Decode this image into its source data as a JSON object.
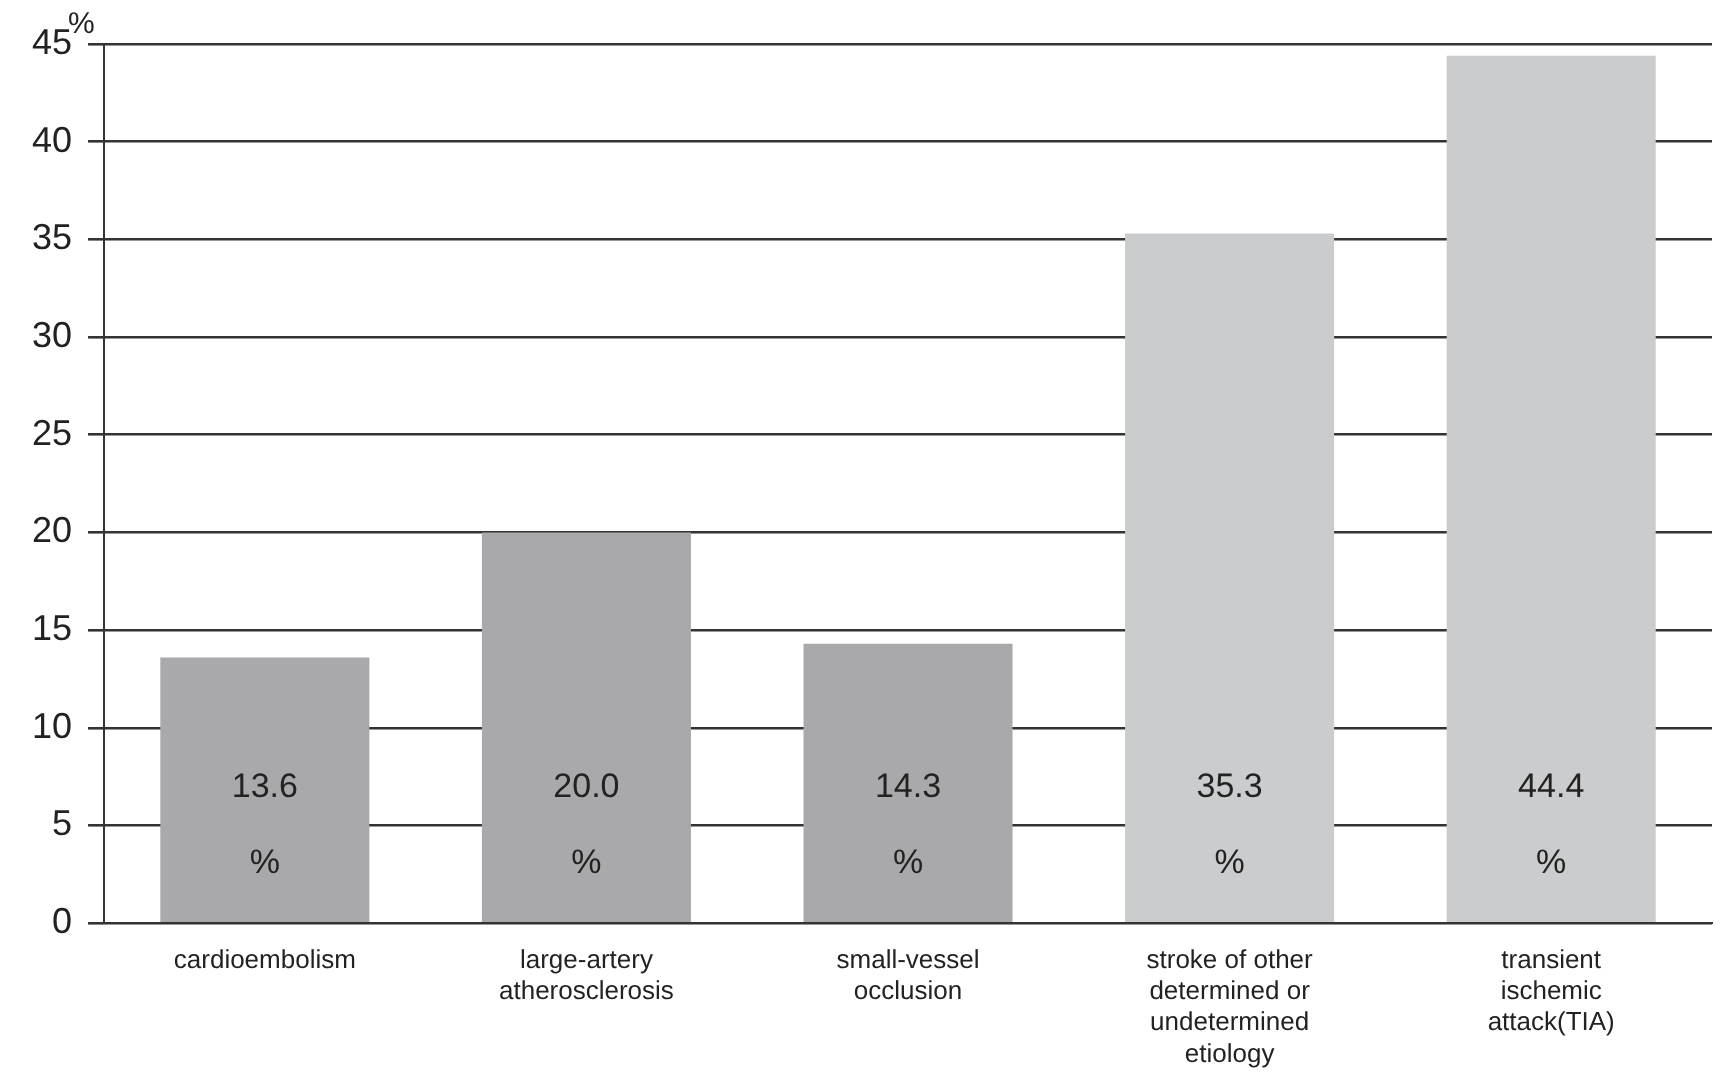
{
  "chart_data": {
    "type": "bar",
    "ylabel": "%",
    "categories": [
      "cardioembolism",
      "large-artery atherosclerosis",
      "small-vessel occlusion",
      "stroke of other determined or undetermined etiology",
      "transient ischemic attack(TIA)"
    ],
    "values": [
      13.6,
      20.0,
      14.3,
      35.3,
      44.4
    ],
    "colors": [
      "#a9a9ab",
      "#a9a9ab",
      "#a9a9ab",
      "#cbccce",
      "#cbccce"
    ],
    "value_labels": [
      "13.6\n%",
      "20.0\n%",
      "14.3\n%",
      "35.3\n%",
      "44.4\n%"
    ],
    "ylim": [
      0,
      45
    ],
    "yticks": [
      0,
      5,
      10,
      15,
      20,
      25,
      30,
      35,
      40,
      45
    ],
    "grid": "y",
    "legend": false
  }
}
